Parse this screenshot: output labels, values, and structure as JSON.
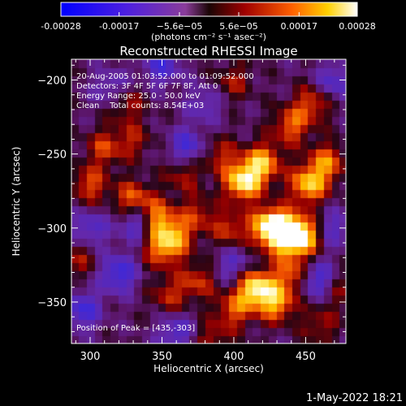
{
  "chart_data": {
    "type": "heatmap",
    "title": "Reconstructed RHESSI Image",
    "xlabel": "Heliocentric X (arcsec)",
    "ylabel": "Heliocentric Y (arcsec)",
    "xlim": [
      287,
      478
    ],
    "ylim": [
      -378,
      -186
    ],
    "x_ticks": [
      300,
      350,
      400,
      450
    ],
    "y_ticks": [
      -200,
      -250,
      -300,
      -350
    ],
    "colorbar": {
      "min": -0.00028,
      "max": 0.00028,
      "tick_values": [
        -0.00028,
        -0.00017,
        -5.6e-05,
        5.6e-05,
        0.00017,
        0.00028
      ],
      "tick_labels": [
        "-0.00028",
        "-0.00017",
        "−5.6e−05",
        "5.6e−05",
        "0.00017",
        "0.00028"
      ],
      "unit_label": "(photons cm⁻² s⁻¹ asec⁻²)"
    },
    "annotations": {
      "time_range": "20-Aug-2005 01:03:52.000 to 01:09:52.000",
      "detectors": "Detectors: 3F 4F 5F 6F 7F 8F, Att 0",
      "energy": "Energy Range: 25.0 - 50.0 keV",
      "clean": "Clean    Total counts: 8.54E+03",
      "peak": "Position of Peak = [435,-303]"
    },
    "peak": [
      435,
      -303
    ],
    "blobs": [
      {
        "x": 435,
        "y": -303,
        "amp": 1.0
      },
      {
        "x": 448,
        "y": -305,
        "amp": 0.85
      },
      {
        "x": 425,
        "y": -298,
        "amp": 0.8
      },
      {
        "x": 407,
        "y": -268,
        "amp": 0.9
      },
      {
        "x": 420,
        "y": -255,
        "amp": 0.7
      },
      {
        "x": 452,
        "y": -270,
        "amp": 0.75
      },
      {
        "x": 465,
        "y": -255,
        "amp": 0.55
      },
      {
        "x": 440,
        "y": -230,
        "amp": 0.5
      },
      {
        "x": 455,
        "y": -215,
        "amp": 0.45
      },
      {
        "x": 415,
        "y": -340,
        "amp": 0.9
      },
      {
        "x": 430,
        "y": -350,
        "amp": 0.65
      },
      {
        "x": 440,
        "y": -330,
        "amp": 0.5
      },
      {
        "x": 400,
        "y": -355,
        "amp": 0.45
      },
      {
        "x": 330,
        "y": -280,
        "amp": 0.55
      },
      {
        "x": 345,
        "y": -293,
        "amp": 0.8
      },
      {
        "x": 360,
        "y": -305,
        "amp": 0.5
      },
      {
        "x": 350,
        "y": -313,
        "amp": 0.55
      },
      {
        "x": 398,
        "y": -300,
        "amp": 0.4
      },
      {
        "x": 365,
        "y": -262,
        "amp": 0.35
      },
      {
        "x": 375,
        "y": -290,
        "amp": 0.35
      },
      {
        "x": 310,
        "y": -245,
        "amp": 0.4
      },
      {
        "x": 325,
        "y": -215,
        "amp": 0.35
      },
      {
        "x": 300,
        "y": -270,
        "amp": 0.45
      },
      {
        "x": 375,
        "y": -335,
        "amp": 0.4
      },
      {
        "x": 355,
        "y": -345,
        "amp": 0.35
      },
      {
        "x": 390,
        "y": -250,
        "amp": 0.35
      },
      {
        "x": 292,
        "y": -320,
        "amp": 0.3
      },
      {
        "x": 470,
        "y": -340,
        "amp": 0.35
      },
      {
        "x": 400,
        "y": -200,
        "amp": 0.3
      },
      {
        "x": 330,
        "y": -240,
        "amp": 0.3
      },
      {
        "x": 460,
        "y": -365,
        "amp": 0.3
      },
      {
        "x": 385,
        "y": -375,
        "amp": 0.3
      },
      {
        "x": 335,
        "y": -295,
        "amp": -0.7
      },
      {
        "x": 320,
        "y": -330,
        "amp": -0.55
      },
      {
        "x": 300,
        "y": -300,
        "amp": -0.4
      },
      {
        "x": 460,
        "y": -335,
        "amp": -0.6
      },
      {
        "x": 470,
        "y": -300,
        "amp": -0.35
      },
      {
        "x": 368,
        "y": -245,
        "amp": -0.5
      },
      {
        "x": 295,
        "y": -355,
        "amp": -0.5
      },
      {
        "x": 350,
        "y": -190,
        "amp": -0.45
      },
      {
        "x": 470,
        "y": -200,
        "amp": -0.4
      },
      {
        "x": 360,
        "y": -370,
        "amp": -0.4
      },
      {
        "x": 400,
        "y": -325,
        "amp": -0.35
      },
      {
        "x": 315,
        "y": -205,
        "amp": -0.35
      },
      {
        "x": 380,
        "y": -215,
        "amp": -0.3
      }
    ]
  },
  "footer": {
    "date": "1-May-2022 18:21"
  }
}
